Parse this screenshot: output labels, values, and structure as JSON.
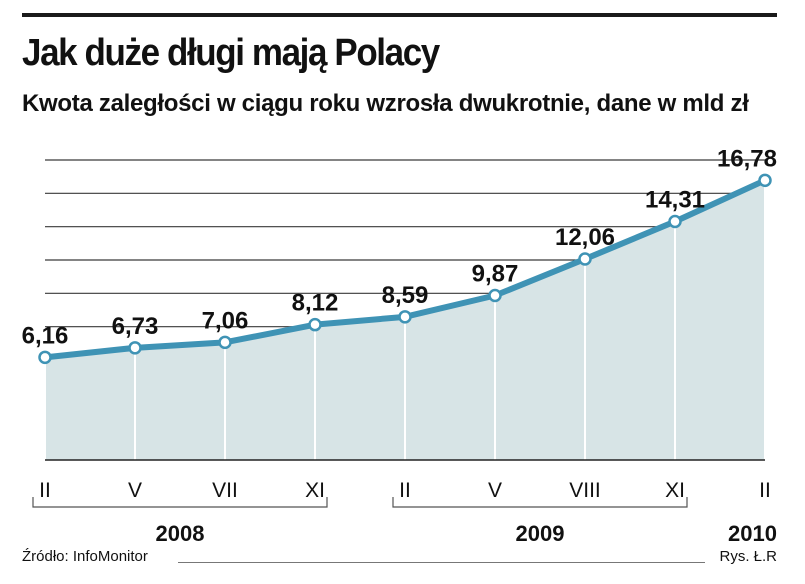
{
  "title": "Jak duże długi mają Polacy",
  "subtitle": "Kwota zaległości w ciągu roku wzrosła dwukrotnie, dane w mld zł",
  "source": "Źródło: InfoMonitor",
  "credit": "Rys. Ł.R",
  "colors": {
    "line": "#3f93b5",
    "area": "#d7e4e6",
    "grid": "#3a3a3a",
    "text": "#111111"
  },
  "chart_data": {
    "type": "area",
    "x": [
      "II",
      "V",
      "VII",
      "XI",
      "II",
      "V",
      "VIII",
      "XI",
      "II"
    ],
    "values": [
      6.16,
      6.73,
      7.06,
      8.12,
      8.59,
      9.87,
      12.06,
      14.31,
      16.78
    ],
    "value_labels": [
      "6,16",
      "6,73",
      "7,06",
      "8,12",
      "8,59",
      "9,87",
      "12,06",
      "14,31",
      "16,78"
    ],
    "year_groups": [
      {
        "label": "2008",
        "start": 0,
        "end": 3
      },
      {
        "label": "2009",
        "start": 4,
        "end": 7
      },
      {
        "label": "2010",
        "start": 8,
        "end": 8
      }
    ],
    "ylim": [
      0,
      18
    ],
    "grid": true
  }
}
